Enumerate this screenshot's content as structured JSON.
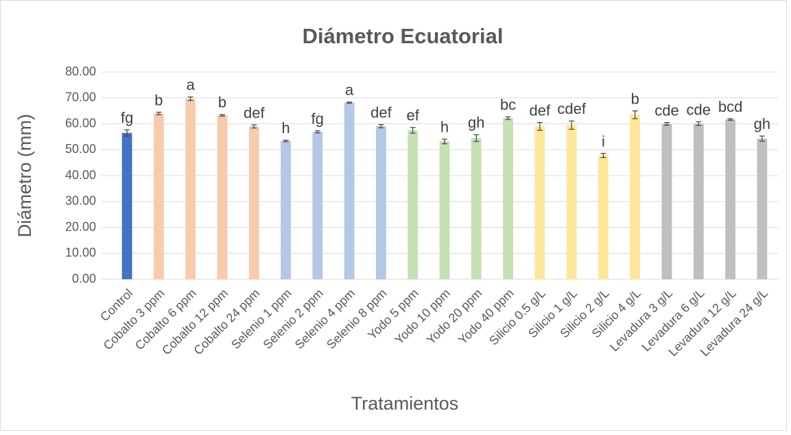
{
  "chart_data": {
    "type": "bar",
    "title": "Diámetro Ecuatorial",
    "x_label": "Tratamientos",
    "y_label": "Diámetro (mm)",
    "categories": [
      "Control",
      "Cobalto 3 ppm",
      "Cobalto 6 ppm",
      "Cobalto 12 ppm",
      "Cobalto 24 ppm",
      "Selenio 1 ppm",
      "Selenio 2 ppm",
      "Selenio 4 ppm",
      "Selenio 8 ppm",
      "Yodo 5 ppm",
      "Yodo 10 ppm",
      "Yodo 20 ppm",
      "Yodo 40 ppm",
      "Silicio 0.5 g/L",
      "Silicio 1 g/L",
      "Silicio 2 g/L",
      "Silicio 4 g/L",
      "Levadura 3 g/L",
      "Levadura 6 g/L",
      "Levadura 12 g/L",
      "Levadura 24 g/L"
    ],
    "values": [
      56.5,
      64.0,
      69.7,
      63.3,
      59.0,
      53.4,
      56.9,
      68.2,
      59.1,
      57.5,
      53.2,
      54.5,
      62.2,
      59.0,
      59.5,
      47.8,
      63.5,
      60.0,
      60.1,
      61.7,
      54.3
    ],
    "errors": [
      1.2,
      0.5,
      0.7,
      0.3,
      0.6,
      0.3,
      0.4,
      0.2,
      0.6,
      1.1,
      0.9,
      1.3,
      0.5,
      1.5,
      1.6,
      0.8,
      1.5,
      0.5,
      0.7,
      0.3,
      1.0
    ],
    "labels": [
      "fg",
      "b",
      "a",
      "b",
      "def",
      "h",
      "fg",
      "a",
      "def",
      "ef",
      "h",
      "gh",
      "bc",
      "def",
      "cdef",
      "i",
      "b",
      "cde",
      "cde",
      "bcd",
      "gh"
    ],
    "colors": [
      "#4472c4",
      "#f8cbad",
      "#f8cbad",
      "#f8cbad",
      "#f8cbad",
      "#b4c7e7",
      "#b4c7e7",
      "#b4c7e7",
      "#b4c7e7",
      "#c5e0b4",
      "#c5e0b4",
      "#c5e0b4",
      "#c5e0b4",
      "#ffe699",
      "#ffe699",
      "#ffe699",
      "#ffe699",
      "#bfbfbf",
      "#bfbfbf",
      "#bfbfbf",
      "#bfbfbf"
    ],
    "ylim": [
      0,
      80
    ],
    "yticks": [
      {
        "value": 0,
        "label": "0.00"
      },
      {
        "value": 10,
        "label": "10.00"
      },
      {
        "value": 20,
        "label": "20.00"
      },
      {
        "value": 30,
        "label": "30.00"
      },
      {
        "value": 40,
        "label": "40.00"
      },
      {
        "value": 50,
        "label": "50.00"
      },
      {
        "value": 60,
        "label": "60.00"
      },
      {
        "value": 70,
        "label": "70.00"
      },
      {
        "value": 80,
        "label": "80.00"
      }
    ],
    "grid": true
  }
}
